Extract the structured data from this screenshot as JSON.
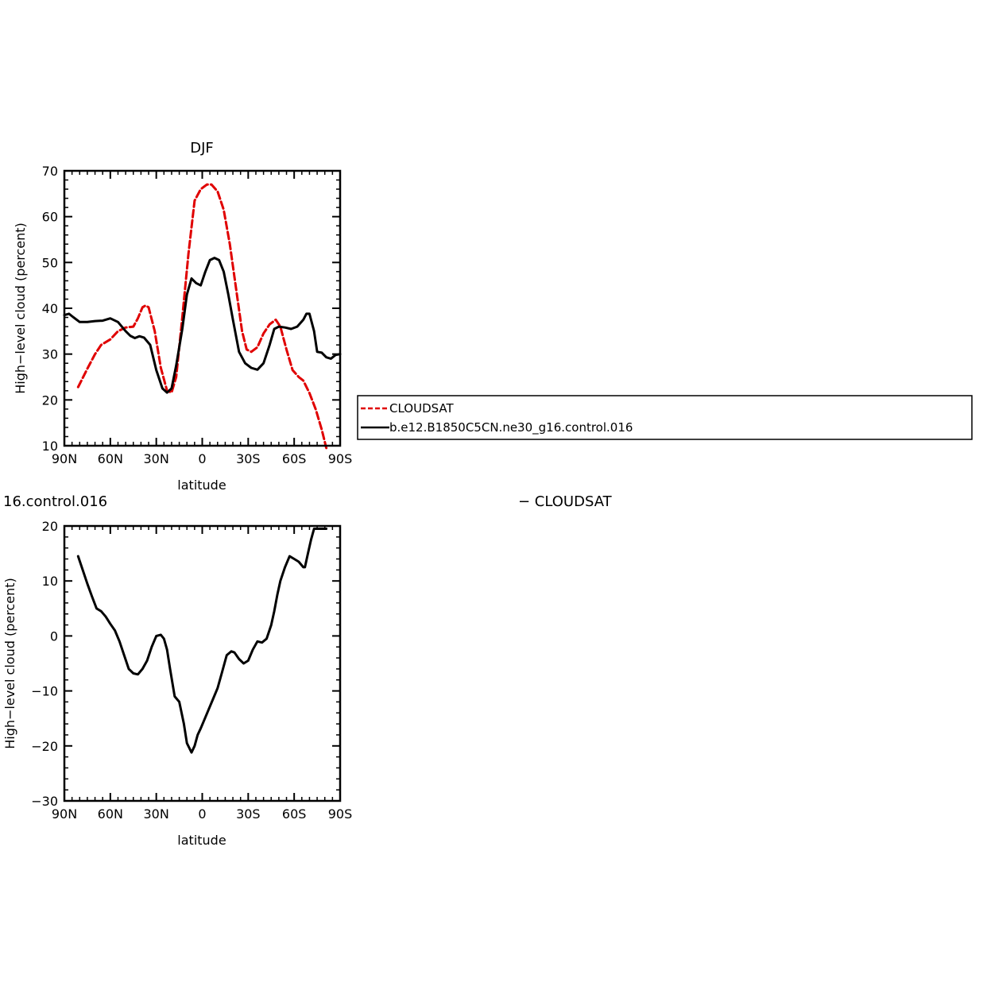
{
  "chart_data": [
    {
      "type": "line",
      "title": "DJF",
      "xlabel": "latitude",
      "ylabel": "High−level cloud (percent)",
      "xlim": [
        90,
        -90
      ],
      "ylim": [
        10,
        70
      ],
      "x_ticks": [
        90,
        60,
        30,
        0,
        -30,
        -60,
        -90
      ],
      "x_tick_labels": [
        "90N",
        "60N",
        "30N",
        "0",
        "30S",
        "60S",
        "90S"
      ],
      "y_ticks": [
        10,
        20,
        30,
        40,
        50,
        60,
        70
      ],
      "y_tick_labels": [
        "10",
        "20",
        "30",
        "40",
        "50",
        "60",
        "70"
      ],
      "series": [
        {
          "name": "CLOUDSAT",
          "color": "#e00000",
          "dash": "dashed",
          "x": [
            81,
            75,
            70,
            66,
            60,
            55,
            50,
            45,
            42,
            39,
            37,
            35,
            31,
            27,
            23,
            20,
            17,
            13,
            9,
            5,
            1,
            -3,
            -6,
            -10,
            -14,
            -18,
            -22,
            -26,
            -29,
            -32,
            -36,
            -40,
            -44,
            -48,
            -51,
            -55,
            -59,
            -63,
            -66,
            -70,
            -74,
            -78,
            -81
          ],
          "y": [
            22.8,
            26.8,
            30.0,
            32.0,
            33.2,
            35.0,
            35.8,
            36.0,
            37.8,
            40.2,
            40.6,
            40.2,
            35.0,
            27.0,
            22.0,
            21.6,
            25.0,
            38.0,
            52.0,
            63.5,
            66.0,
            67.0,
            67.0,
            65.5,
            61.5,
            54.0,
            44.5,
            35.0,
            31.0,
            30.5,
            31.5,
            34.5,
            36.5,
            37.5,
            36.0,
            31.0,
            26.5,
            25.0,
            24.2,
            21.5,
            18.0,
            13.5,
            9.5
          ]
        },
        {
          "name": "b.e12.B1850C5CN.ne30_g16.control.016",
          "color": "#000000",
          "dash": "solid",
          "x": [
            90,
            87,
            84,
            80,
            75,
            70,
            65,
            60,
            55,
            50,
            47,
            44,
            41,
            38,
            34,
            30,
            26,
            23,
            20,
            17,
            13,
            10,
            7,
            4,
            1,
            -2,
            -5,
            -8,
            -11,
            -14,
            -17,
            -20,
            -24,
            -28,
            -32,
            -36,
            -40,
            -44,
            -47,
            -50,
            -54,
            -58,
            -62,
            -66,
            -68,
            -70,
            -73,
            -75,
            -78,
            -81,
            -84,
            -87,
            -90
          ],
          "y": [
            38.5,
            38.8,
            38.0,
            37.0,
            37.0,
            37.2,
            37.3,
            37.8,
            37.0,
            35.0,
            34.0,
            33.5,
            33.9,
            33.6,
            32.0,
            26.5,
            22.5,
            21.6,
            22.5,
            27.5,
            35.5,
            43.0,
            46.5,
            45.5,
            45.0,
            48.0,
            50.5,
            51.0,
            50.5,
            48.0,
            43.0,
            37.5,
            30.5,
            28.0,
            27.0,
            26.6,
            28.0,
            32.0,
            35.5,
            36.0,
            35.8,
            35.5,
            36.0,
            37.5,
            38.8,
            38.8,
            35.0,
            30.5,
            30.3,
            29.3,
            29.0,
            29.8,
            30.0
          ]
        }
      ],
      "legend": {
        "placement": "right",
        "entries": [
          {
            "label": "CLOUDSAT",
            "color": "#e00000",
            "dash": "dashed"
          },
          {
            "label": "b.e12.B1850C5CN.ne30_g16.control.016",
            "color": "#000000",
            "dash": "solid"
          }
        ]
      }
    },
    {
      "type": "line",
      "title": "16.control.016",
      "right_title": "− CLOUDSAT",
      "xlabel": "latitude",
      "ylabel": "High−level cloud (percent)",
      "xlim": [
        90,
        -90
      ],
      "ylim": [
        -30,
        20
      ],
      "x_ticks": [
        90,
        60,
        30,
        0,
        -30,
        -60,
        -90
      ],
      "x_tick_labels": [
        "90N",
        "60N",
        "30N",
        "0",
        "30S",
        "60S",
        "90S"
      ],
      "y_ticks": [
        -30,
        -20,
        -10,
        0,
        10,
        20
      ],
      "y_tick_labels": [
        "−30",
        "−20",
        "−10",
        "0",
        "10",
        "20"
      ],
      "series": [
        {
          "name": "",
          "color": "#000000",
          "dash": "solid",
          "x": [
            81,
            78,
            75,
            72,
            69,
            66,
            63,
            60,
            57,
            54,
            51,
            48,
            45,
            42,
            39,
            36,
            33,
            30,
            27,
            25,
            23,
            21,
            18,
            15,
            12,
            10,
            7,
            5,
            3,
            1,
            -1,
            -4,
            -7,
            -10,
            -13,
            -16,
            -19,
            -21,
            -24,
            -27,
            -30,
            -33,
            -36,
            -39,
            -42,
            -45,
            -47,
            -49,
            -51,
            -54,
            -57,
            -60,
            -63,
            -66,
            -67,
            -69,
            -71,
            -73,
            -76,
            -79,
            -81
          ],
          "y": [
            14.5,
            12.0,
            9.5,
            7.2,
            5.0,
            4.5,
            3.5,
            2.2,
            1.0,
            -1.0,
            -3.5,
            -6.0,
            -6.8,
            -7.0,
            -6.0,
            -4.5,
            -2.0,
            0.0,
            0.2,
            -0.5,
            -2.5,
            -6.0,
            -11.0,
            -12.0,
            -16.0,
            -19.5,
            -21.2,
            -20.0,
            -18.0,
            -16.8,
            -15.5,
            -13.5,
            -11.5,
            -9.5,
            -6.5,
            -3.5,
            -2.8,
            -3.0,
            -4.2,
            -5.0,
            -4.5,
            -2.5,
            -1.0,
            -1.2,
            -0.5,
            2.0,
            4.5,
            7.5,
            10.0,
            12.5,
            14.5,
            14.0,
            13.5,
            12.5,
            12.5,
            15.0,
            17.5,
            19.5,
            19.5,
            19.5,
            19.5
          ]
        }
      ]
    }
  ]
}
